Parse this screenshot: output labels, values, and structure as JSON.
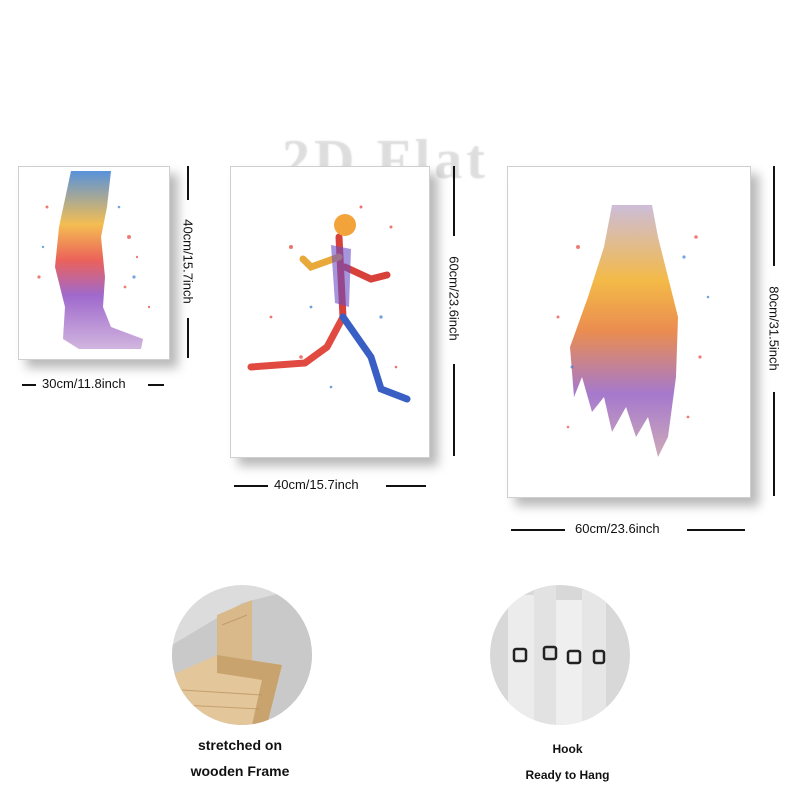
{
  "watermark": "2D Flat",
  "posters": [
    {
      "name": "leg",
      "width_label": "30cm/11.8inch",
      "height_label": "40cm/15.7inch"
    },
    {
      "name": "runner",
      "width_label": "40cm/15.7inch",
      "height_label": "60cm/23.6inch"
    },
    {
      "name": "foot",
      "width_label": "60cm/23.6inch",
      "height_label": "80cm/31.5inch"
    }
  ],
  "features": [
    {
      "name": "frame",
      "lines": [
        "stretched on",
        "wooden Frame"
      ]
    },
    {
      "name": "hook",
      "lines": [
        "Hook",
        "Ready to Hang"
      ]
    }
  ]
}
